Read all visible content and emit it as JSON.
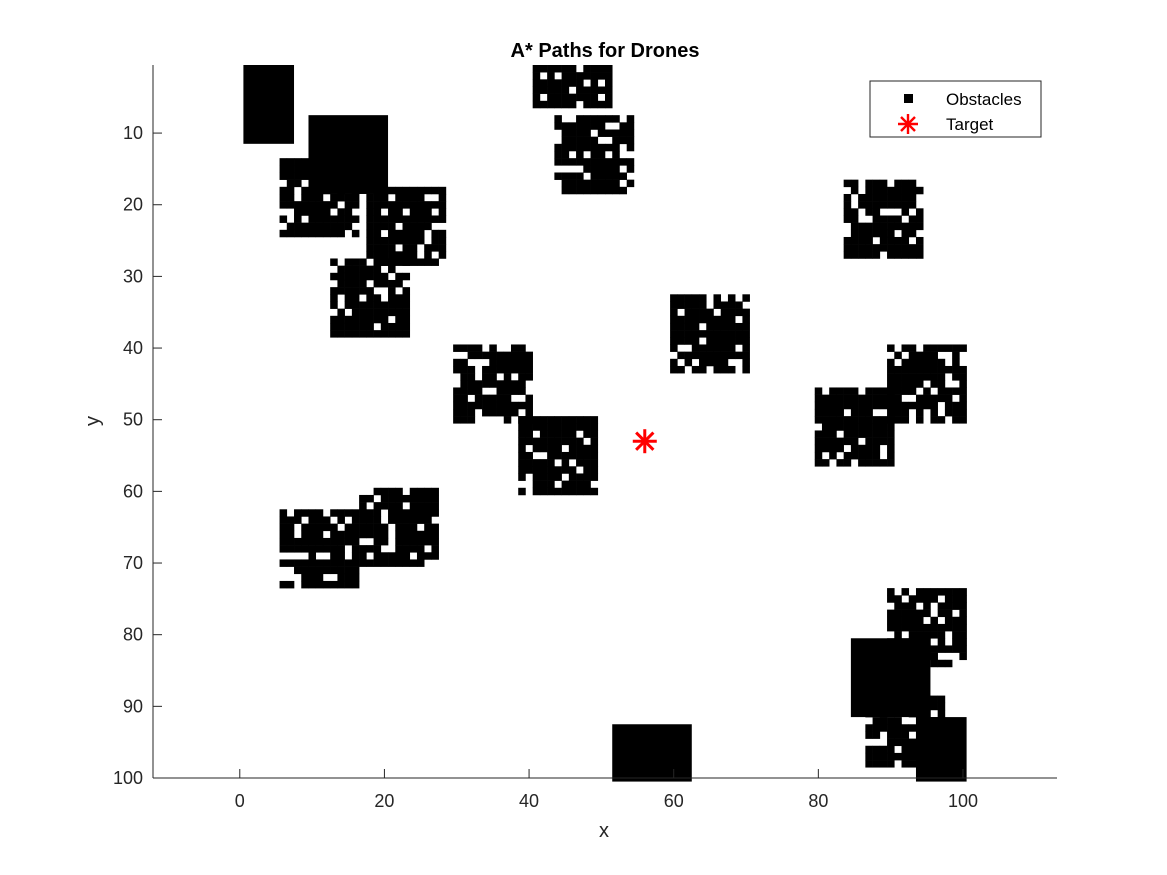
{
  "chart_data": {
    "type": "scatter",
    "title": "A* Paths for Drones",
    "xlabel": "x",
    "ylabel": "y",
    "xlim": [
      -12,
      113
    ],
    "ylim": [
      0.5,
      100
    ],
    "y_reversed": true,
    "xticks": [
      0,
      20,
      40,
      60,
      80,
      100
    ],
    "yticks": [
      10,
      20,
      30,
      40,
      50,
      60,
      70,
      80,
      90,
      100
    ],
    "grid": false,
    "legend_position": "top-right",
    "series": [
      {
        "name": "Obstacles",
        "marker": "square",
        "color": "#000000",
        "regions": [
          {
            "x": [
              1,
              7
            ],
            "y": [
              1,
              11
            ],
            "density": 1.0
          },
          {
            "x": [
              10,
              20
            ],
            "y": [
              8,
              18
            ],
            "density": 1.0
          },
          {
            "x": [
              6,
              16
            ],
            "y": [
              14,
              24
            ],
            "density": 0.82
          },
          {
            "x": [
              18,
              28
            ],
            "y": [
              18,
              28
            ],
            "density": 0.82
          },
          {
            "x": [
              13,
              23
            ],
            "y": [
              28,
              38
            ],
            "density": 0.82
          },
          {
            "x": [
              41,
              51
            ],
            "y": [
              1,
              6
            ],
            "density": 0.82
          },
          {
            "x": [
              44,
              54
            ],
            "y": [
              8,
              18
            ],
            "density": 0.8
          },
          {
            "x": [
              30,
              40
            ],
            "y": [
              40,
              50
            ],
            "density": 0.8
          },
          {
            "x": [
              39,
              49
            ],
            "y": [
              50,
              60
            ],
            "density": 0.8
          },
          {
            "x": [
              60,
              70
            ],
            "y": [
              33,
              43
            ],
            "density": 0.8
          },
          {
            "x": [
              84,
              94
            ],
            "y": [
              17,
              27
            ],
            "density": 0.8
          },
          {
            "x": [
              90,
              100
            ],
            "y": [
              40,
              50
            ],
            "density": 0.8
          },
          {
            "x": [
              80,
              90
            ],
            "y": [
              46,
              56
            ],
            "density": 0.85
          },
          {
            "x": [
              6,
              16
            ],
            "y": [
              63,
              73
            ],
            "density": 0.8
          },
          {
            "x": [
              17,
              27
            ],
            "y": [
              60,
              70
            ],
            "density": 0.8
          },
          {
            "x": [
              90,
              100
            ],
            "y": [
              74,
              84
            ],
            "density": 0.8
          },
          {
            "x": [
              85,
              95
            ],
            "y": [
              81,
              91
            ],
            "density": 1.0
          },
          {
            "x": [
              87,
              97
            ],
            "y": [
              89,
              98
            ],
            "density": 0.8
          },
          {
            "x": [
              94,
              100
            ],
            "y": [
              92,
              100
            ],
            "density": 1.0
          },
          {
            "x": [
              52,
              62
            ],
            "y": [
              93,
              100
            ],
            "density": 1.0
          }
        ]
      },
      {
        "name": "Target",
        "marker": "asterisk",
        "color": "#ff0000",
        "points": [
          {
            "x": 56,
            "y": 53
          }
        ]
      }
    ]
  }
}
